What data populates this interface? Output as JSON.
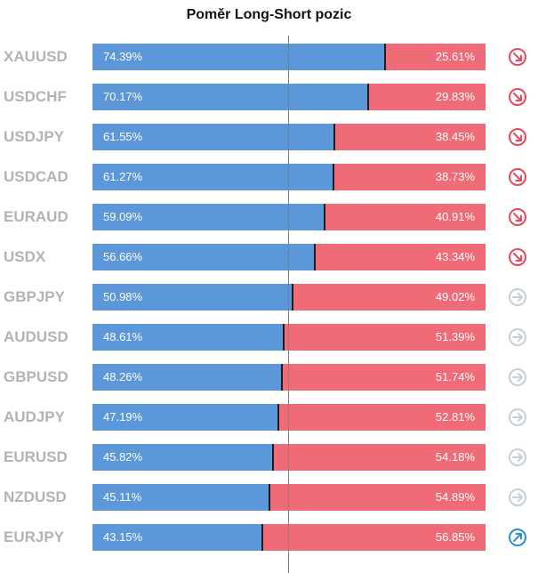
{
  "title": "Poměr Long-Short pozic",
  "colors": {
    "long": "#5b97d9",
    "short": "#ef6b78",
    "down": "#e8495b",
    "neutral": "#c4cfda",
    "up": "#2a8fd6"
  },
  "chart_data": {
    "type": "bar",
    "orientation": "horizontal-stacked",
    "title": "Poměr Long-Short pozic",
    "categories": [
      "XAUUSD",
      "USDCHF",
      "USDJPY",
      "USDCAD",
      "EURAUD",
      "USDX",
      "GBPJPY",
      "AUDUSD",
      "GBPUSD",
      "AUDJPY",
      "EURUSD",
      "NZDUSD",
      "EURJPY"
    ],
    "series": [
      {
        "values": [
          74.39,
          70.17,
          61.55,
          61.27,
          59.09,
          56.66,
          50.98,
          48.61,
          48.26,
          47.19,
          45.82,
          45.11,
          43.15
        ]
      },
      {
        "values": [
          25.61,
          29.83,
          38.45,
          38.73,
          40.91,
          43.34,
          49.02,
          51.39,
          51.74,
          52.81,
          54.18,
          54.89,
          56.85
        ]
      }
    ],
    "value_labels": {
      "long": [
        "74.39%",
        "70.17%",
        "61.55%",
        "61.27%",
        "59.09%",
        "56.66%",
        "50.98%",
        "48.61%",
        "48.26%",
        "47.19%",
        "45.82%",
        "45.11%",
        "43.15%"
      ],
      "short": [
        "25.61%",
        "29.83%",
        "38.45%",
        "38.73%",
        "40.91%",
        "43.34%",
        "49.02%",
        "51.39%",
        "51.74%",
        "52.81%",
        "54.18%",
        "54.89%",
        "56.85%"
      ]
    },
    "signals": [
      "down",
      "down",
      "down",
      "down",
      "down",
      "down",
      "neutral",
      "neutral",
      "neutral",
      "neutral",
      "neutral",
      "neutral",
      "up"
    ],
    "xlim": [
      0,
      100
    ],
    "grid": false
  }
}
